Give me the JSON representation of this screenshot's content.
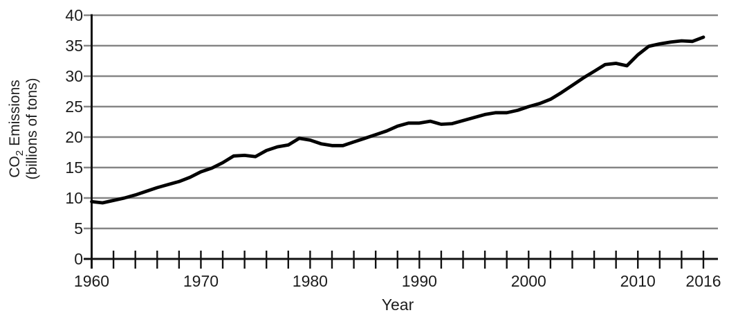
{
  "chart_data": {
    "type": "line",
    "title": "",
    "xlabel": "Year",
    "ylabel": "CO2 Emissions (billions of tons)",
    "ylabel_line1": {
      "pre": "CO",
      "sub": "2",
      "post": "Emissions"
    },
    "ylabel_line2": "(billions of tons)",
    "xlim": [
      1960,
      2016
    ],
    "ylim": [
      0,
      40
    ],
    "y_ticks": [
      0,
      5,
      10,
      15,
      20,
      25,
      30,
      35,
      40
    ],
    "x_minor_tick_interval_years": 2,
    "x_tick_labels": [
      "1960",
      "1970",
      "1980",
      "1990",
      "2000",
      "2010",
      "2016"
    ],
    "x_tick_label_years": [
      1960,
      1970,
      1980,
      1990,
      2000,
      2010,
      2016
    ],
    "grid": "horizontal",
    "legend": "none",
    "colors": {
      "line": "#000000",
      "grid": "#858585",
      "axis": "#111111",
      "text": "#1c1c1c",
      "background": "#ffffff"
    },
    "series": [
      {
        "name": "CO2 emissions (billions of tons)",
        "x": [
          1960,
          1961,
          1962,
          1963,
          1964,
          1965,
          1966,
          1967,
          1968,
          1969,
          1970,
          1971,
          1972,
          1973,
          1974,
          1975,
          1976,
          1977,
          1978,
          1979,
          1980,
          1981,
          1982,
          1983,
          1984,
          1985,
          1986,
          1987,
          1988,
          1989,
          1990,
          1991,
          1992,
          1993,
          1994,
          1995,
          1996,
          1997,
          1998,
          1999,
          2000,
          2001,
          2002,
          2003,
          2004,
          2005,
          2006,
          2007,
          2008,
          2009,
          2010,
          2011,
          2012,
          2013,
          2014,
          2015,
          2016
        ],
        "values": [
          9.4,
          9.2,
          9.6,
          10.0,
          10.5,
          11.1,
          11.7,
          12.2,
          12.7,
          13.4,
          14.3,
          14.9,
          15.8,
          16.9,
          17.0,
          16.8,
          17.8,
          18.4,
          18.7,
          19.8,
          19.5,
          18.9,
          18.6,
          18.6,
          19.2,
          19.8,
          20.4,
          21.0,
          21.8,
          22.3,
          22.3,
          22.6,
          22.1,
          22.2,
          22.7,
          23.2,
          23.7,
          24.0,
          24.0,
          24.4,
          25.0,
          25.5,
          26.2,
          27.3,
          28.5,
          29.7,
          30.8,
          31.9,
          32.1,
          31.7,
          33.5,
          34.9,
          35.3,
          35.6,
          35.8,
          35.7,
          36.4
        ]
      }
    ]
  }
}
